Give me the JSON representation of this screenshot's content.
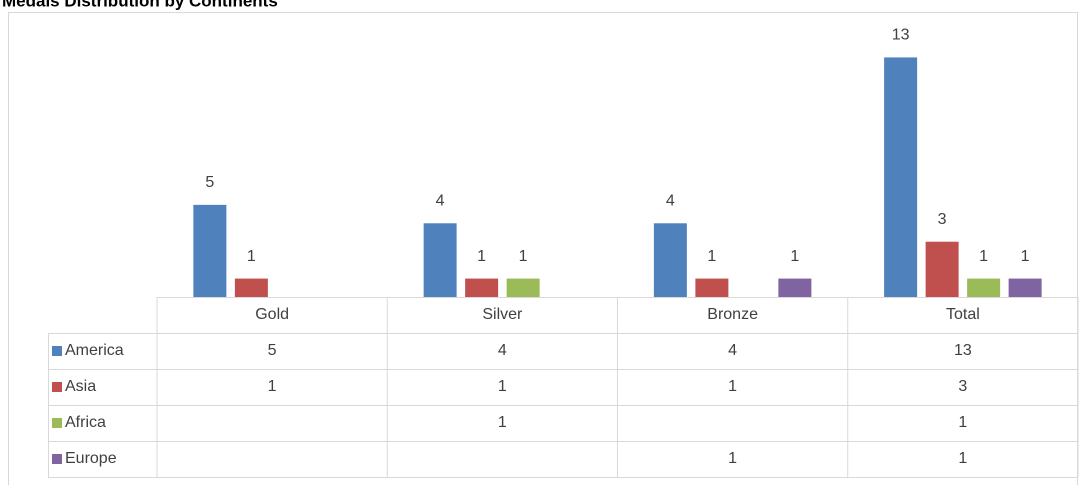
{
  "chart_data": {
    "type": "bar",
    "title": "Medals Distribution by Continents",
    "categories": [
      "Gold",
      "Silver",
      "Bronze",
      "Total"
    ],
    "series": [
      {
        "name": "America",
        "color": "#4f81bd",
        "values": [
          5,
          4,
          4,
          13
        ]
      },
      {
        "name": "Asia",
        "color": "#c0504d",
        "values": [
          1,
          1,
          1,
          3
        ]
      },
      {
        "name": "Africa",
        "color": "#9bbb59",
        "values": [
          null,
          1,
          null,
          1
        ]
      },
      {
        "name": "Europe",
        "color": "#8064a2",
        "values": [
          null,
          null,
          1,
          1
        ]
      }
    ],
    "ylim": [
      0,
      14
    ],
    "data_table": true
  }
}
